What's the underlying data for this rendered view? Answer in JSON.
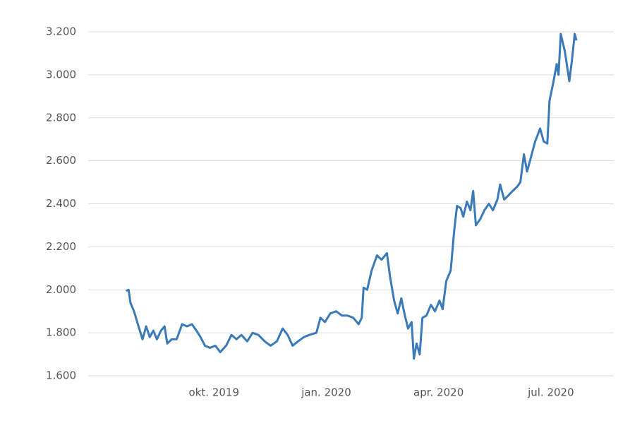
{
  "chart_data": {
    "type": "line",
    "x": [
      2019.554,
      2019.56,
      2019.564,
      2019.572,
      2019.582,
      2019.591,
      2019.599,
      2019.607,
      2019.615,
      2019.623,
      2019.632,
      2019.64,
      2019.646,
      2019.656,
      2019.667,
      2019.679,
      2019.69,
      2019.701,
      2019.711,
      2019.72,
      2019.73,
      2019.741,
      2019.753,
      2019.764,
      2019.777,
      2019.789,
      2019.8,
      2019.811,
      2019.824,
      2019.836,
      2019.849,
      2019.863,
      2019.876,
      2019.89,
      2019.903,
      2019.914,
      2019.925,
      2019.937,
      2019.95,
      2019.962,
      2019.978,
      2019.987,
      2019.997,
      2020.009,
      2020.022,
      2020.035,
      2020.047,
      2020.06,
      2020.072,
      2020.079,
      2020.083,
      2020.091,
      2020.101,
      2020.113,
      2020.123,
      2020.135,
      2020.142,
      2020.151,
      2020.159,
      2020.167,
      2020.175,
      2020.182,
      2020.19,
      2020.195,
      2020.201,
      2020.208,
      2020.214,
      2020.223,
      2020.233,
      2020.242,
      2020.252,
      2020.259,
      2020.267,
      2020.277,
      2020.285,
      2020.291,
      2020.299,
      2020.305,
      2020.313,
      2020.321,
      2020.327,
      2020.333,
      2020.343,
      2020.352,
      2020.362,
      2020.371,
      2020.381,
      2020.387,
      2020.396,
      2020.406,
      2020.415,
      2020.425,
      2020.432,
      2020.44,
      2020.447,
      2020.456,
      2020.465,
      2020.476,
      2020.484,
      2020.492,
      2020.497,
      2020.505,
      2020.513,
      2020.517,
      2020.522,
      2020.531,
      2020.541,
      2020.547,
      2020.553,
      2020.557
    ],
    "series": [
      {
        "color": "#3a7ab8",
        "values": [
          1995,
          2000,
          1940,
          1900,
          1830,
          1770,
          1830,
          1780,
          1810,
          1770,
          1810,
          1830,
          1750,
          1770,
          1770,
          1840,
          1830,
          1840,
          1810,
          1780,
          1740,
          1730,
          1740,
          1710,
          1740,
          1790,
          1770,
          1790,
          1760,
          1800,
          1790,
          1760,
          1740,
          1760,
          1820,
          1790,
          1740,
          1760,
          1780,
          1790,
          1800,
          1870,
          1850,
          1890,
          1900,
          1880,
          1880,
          1870,
          1840,
          1870,
          2010,
          2000,
          2090,
          2160,
          2140,
          2170,
          2060,
          1950,
          1890,
          1960,
          1880,
          1820,
          1850,
          1680,
          1750,
          1700,
          1870,
          1880,
          1930,
          1900,
          1950,
          1910,
          2040,
          2090,
          2280,
          2390,
          2380,
          2340,
          2410,
          2370,
          2460,
          2300,
          2330,
          2370,
          2400,
          2370,
          2420,
          2490,
          2420,
          2440,
          2460,
          2480,
          2500,
          2630,
          2550,
          2620,
          2690,
          2750,
          2690,
          2680,
          2880,
          2960,
          3050,
          3000,
          3190,
          3110,
          2970,
          3070,
          3190,
          3160
        ]
      }
    ],
    "xlim": [
      2019.47,
      2020.64
    ],
    "xticks": [
      {
        "value": 2019.75,
        "label": "okt. 2019"
      },
      {
        "value": 2020.0,
        "label": "jan. 2020"
      },
      {
        "value": 2020.25,
        "label": "apr. 2020"
      },
      {
        "value": 2020.5,
        "label": "jul. 2020"
      }
    ],
    "ylim": [
      1600,
      3200
    ],
    "yticks": [
      {
        "value": 1600,
        "label": "1.600"
      },
      {
        "value": 1800,
        "label": "1.800"
      },
      {
        "value": 2000,
        "label": "2.000"
      },
      {
        "value": 2200,
        "label": "2.200"
      },
      {
        "value": 2400,
        "label": "2.400"
      },
      {
        "value": 2600,
        "label": "2.600"
      },
      {
        "value": 2800,
        "label": "2.800"
      },
      {
        "value": 3000,
        "label": "3.000"
      },
      {
        "value": 3200,
        "label": "3.200"
      }
    ],
    "grid": true
  }
}
